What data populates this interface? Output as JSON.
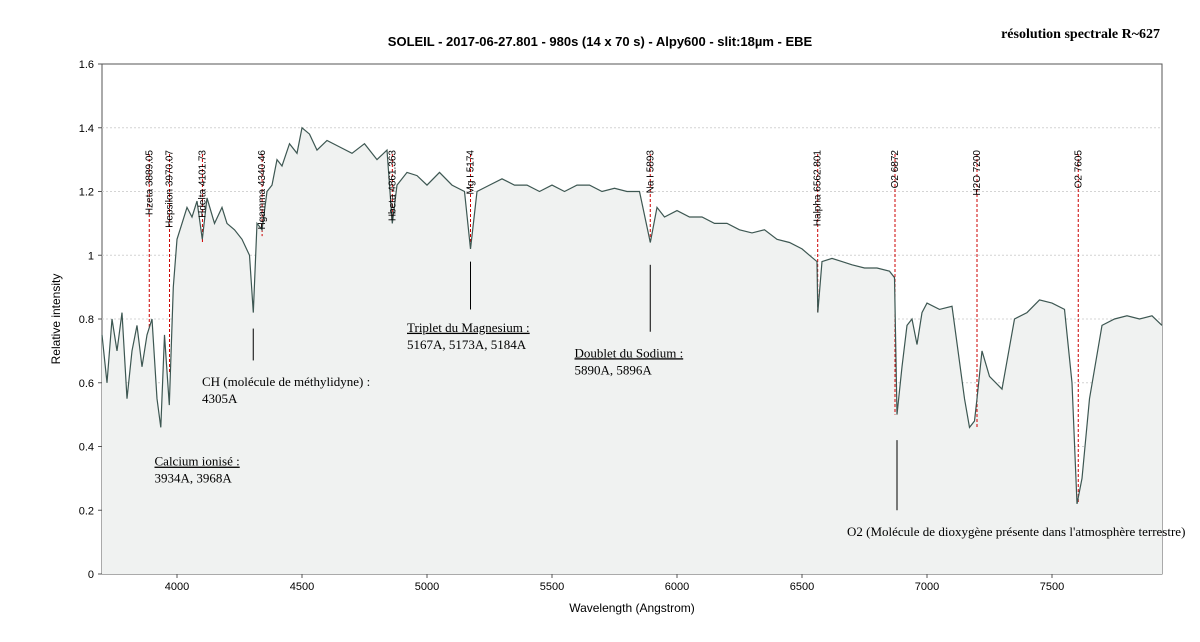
{
  "chart_data": {
    "type": "line",
    "title": "SOLEIL - 2017-06-27.801 - 980s (14 x 70 s) - Alpy600 - slit:18µm - EBE",
    "corner_note": "résolution spectrale R~627",
    "xlabel": "Wavelength (Angstrom)",
    "ylabel": "Relative intensity",
    "xlim": [
      3700,
      7940
    ],
    "ylim": [
      0,
      1.6
    ],
    "x_ticks": [
      4000,
      4500,
      5000,
      5500,
      6000,
      6500,
      7000,
      7500
    ],
    "y_ticks": [
      0,
      0.2,
      0.4,
      0.6,
      0.8,
      1,
      1.2,
      1.4,
      1.6
    ],
    "y_tick_labels": [
      "0",
      "0.2",
      "0.4",
      "0.6",
      "0.8",
      "1",
      "1.2",
      "1.4",
      "1.6"
    ],
    "grid": "horizontal",
    "colors": {
      "line": "#3d5752",
      "fill": "#f0f2f1",
      "marker": "#cc0000"
    },
    "series": [
      {
        "x": [
          3700,
          3720,
          3740,
          3760,
          3780,
          3800,
          3820,
          3840,
          3860,
          3880,
          3900,
          3920,
          3935,
          3950,
          3969,
          3985,
          4000,
          4020,
          4040,
          4060,
          4080,
          4101,
          4120,
          4150,
          4180,
          4200,
          4230,
          4260,
          4290,
          4305,
          4320,
          4340,
          4360,
          4380,
          4400,
          4420,
          4450,
          4480,
          4500,
          4530,
          4560,
          4600,
          4650,
          4700,
          4750,
          4800,
          4840,
          4861,
          4880,
          4920,
          4960,
          5000,
          5050,
          5100,
          5150,
          5174,
          5200,
          5250,
          5300,
          5350,
          5400,
          5450,
          5500,
          5550,
          5600,
          5650,
          5700,
          5750,
          5800,
          5850,
          5893,
          5920,
          5950,
          6000,
          6050,
          6100,
          6150,
          6200,
          6250,
          6300,
          6350,
          6400,
          6450,
          6500,
          6530,
          6560,
          6563,
          6580,
          6620,
          6660,
          6700,
          6750,
          6800,
          6850,
          6870,
          6880,
          6900,
          6920,
          6940,
          6960,
          6980,
          7000,
          7050,
          7100,
          7150,
          7170,
          7190,
          7200,
          7220,
          7250,
          7300,
          7350,
          7400,
          7450,
          7500,
          7550,
          7580,
          7600,
          7620,
          7650,
          7700,
          7750,
          7800,
          7850,
          7900,
          7940
        ],
        "y": [
          0.75,
          0.6,
          0.8,
          0.7,
          0.82,
          0.55,
          0.7,
          0.78,
          0.65,
          0.75,
          0.8,
          0.55,
          0.46,
          0.75,
          0.53,
          0.9,
          1.05,
          1.1,
          1.15,
          1.12,
          1.17,
          1.05,
          1.18,
          1.1,
          1.15,
          1.1,
          1.08,
          1.05,
          1.0,
          0.82,
          1.1,
          1.08,
          1.2,
          1.22,
          1.3,
          1.28,
          1.35,
          1.32,
          1.4,
          1.38,
          1.33,
          1.36,
          1.34,
          1.32,
          1.35,
          1.3,
          1.33,
          1.1,
          1.22,
          1.26,
          1.25,
          1.22,
          1.26,
          1.22,
          1.2,
          1.02,
          1.2,
          1.22,
          1.24,
          1.22,
          1.22,
          1.2,
          1.22,
          1.2,
          1.22,
          1.22,
          1.2,
          1.21,
          1.2,
          1.2,
          1.04,
          1.15,
          1.12,
          1.14,
          1.12,
          1.12,
          1.1,
          1.1,
          1.08,
          1.07,
          1.08,
          1.05,
          1.04,
          1.02,
          1.0,
          0.98,
          0.82,
          0.98,
          0.99,
          0.98,
          0.97,
          0.96,
          0.96,
          0.95,
          0.93,
          0.5,
          0.65,
          0.78,
          0.8,
          0.72,
          0.82,
          0.85,
          0.83,
          0.84,
          0.55,
          0.46,
          0.48,
          0.55,
          0.7,
          0.62,
          0.58,
          0.8,
          0.82,
          0.86,
          0.85,
          0.83,
          0.6,
          0.22,
          0.3,
          0.55,
          0.78,
          0.8,
          0.81,
          0.8,
          0.81,
          0.78
        ]
      }
    ],
    "lines": [
      {
        "x": 3889.05,
        "label": "Hzeta 3889.05",
        "y_from": 0.77
      },
      {
        "x": 3970.07,
        "label": "Hepsilon 3970.07",
        "y_from": 0.63
      },
      {
        "x": 4101.73,
        "label": "Hdelta 4101.73",
        "y_from": 1.04
      },
      {
        "x": 4340.46,
        "label": "Hgamma 4340.46",
        "y_from": 1.06
      },
      {
        "x": 4861.363,
        "label": "Hbeta 4861.363",
        "y_from": 1.1
      },
      {
        "x": 5174,
        "label": "Mg I 5174",
        "y_from": 1.02
      },
      {
        "x": 5893,
        "label": "Na I 5893",
        "y_from": 1.04
      },
      {
        "x": 6562.801,
        "label": "Halpha 6562.801",
        "y_from": 0.82
      },
      {
        "x": 6872,
        "label": "O2 6872",
        "y_from": 0.5
      },
      {
        "x": 7200,
        "label": "H2O 7200",
        "y_from": 0.46
      },
      {
        "x": 7605,
        "label": "O2 7605",
        "y_from": 0.22
      }
    ],
    "annotations": [
      {
        "key": "calcium",
        "title": "Calcium ionisé :",
        "text": "3934A, 3968A",
        "x": 3910,
        "y": 0.34
      },
      {
        "key": "ch",
        "title": "CH (molécule de méthylidyne) :",
        "text": "4305A",
        "x": 4100,
        "y": 0.59
      },
      {
        "key": "mg",
        "title": "Triplet du Magnesium :",
        "text": "5167A, 5173A, 5184A",
        "x": 4920,
        "y": 0.76
      },
      {
        "key": "na",
        "title": "Doublet du Sodium :",
        "text": "5890A, 5896A",
        "x": 5590,
        "y": 0.68
      },
      {
        "key": "o2",
        "title": "O2 (Molécule de dioxygène présente dans l'atmosphère terrestre)",
        "text": "",
        "x": 6680,
        "y": 0.12
      }
    ],
    "pointer_lines": [
      {
        "x": 4305,
        "y1": 0.77,
        "y2": 0.67
      },
      {
        "x": 5174,
        "y1": 0.98,
        "y2": 0.83
      },
      {
        "x": 5893,
        "y1": 0.97,
        "y2": 0.76
      },
      {
        "x": 6880,
        "y1": 0.42,
        "y2": 0.2
      }
    ]
  }
}
